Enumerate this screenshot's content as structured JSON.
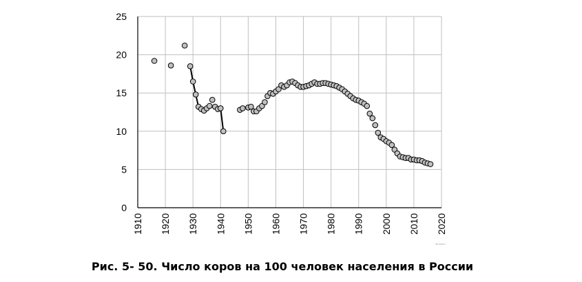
{
  "caption": "Рис. 5- 50. Число коров на 100 человек населения в России",
  "watermark": "vk.com/...",
  "chart_data": {
    "type": "scatter",
    "title": "",
    "xlabel": "",
    "ylabel": "",
    "xlim": [
      1910,
      2020
    ],
    "ylim": [
      0,
      25
    ],
    "x_ticks": [
      1910,
      1920,
      1930,
      1940,
      1950,
      1960,
      1970,
      1980,
      1990,
      2000,
      2010,
      2020
    ],
    "y_ticks": [
      0,
      5,
      10,
      15,
      20,
      25
    ],
    "grid": true,
    "legend": "none",
    "colors": {
      "marker_fill": "#c0c0c0",
      "marker_stroke": "#000000",
      "line": "#000000",
      "grid": "#bfbfbf",
      "axis": "#000000"
    },
    "series": [
      {
        "x": [
          1916,
          1922,
          1927,
          1929,
          1930,
          1931,
          1932,
          1933,
          1934,
          1935,
          1936,
          1937,
          1938,
          1939,
          1940,
          1941,
          1947,
          1948,
          1950,
          1951,
          1952,
          1953,
          1954,
          1955,
          1956,
          1957,
          1958,
          1959,
          1960,
          1961,
          1962,
          1963,
          1964,
          1965,
          1966,
          1967,
          1968,
          1969,
          1970,
          1971,
          1972,
          1973,
          1974,
          1975,
          1976,
          1977,
          1978,
          1979,
          1980,
          1981,
          1982,
          1983,
          1984,
          1985,
          1986,
          1987,
          1988,
          1989,
          1990,
          1991,
          1992,
          1993,
          1994,
          1995,
          1996,
          1997,
          1998,
          1999,
          2000,
          2001,
          2002,
          2003,
          2004,
          2005,
          2006,
          2007,
          2008,
          2009,
          2010,
          2011,
          2012,
          2013,
          2014,
          2015,
          2016
        ],
        "y": [
          19.2,
          18.6,
          21.2,
          18.5,
          16.5,
          14.8,
          13.2,
          12.9,
          12.7,
          13.0,
          13.3,
          14.1,
          13.2,
          12.9,
          13.0,
          10.0,
          12.8,
          13.0,
          13.1,
          13.2,
          12.6,
          12.6,
          13.0,
          13.3,
          13.8,
          14.6,
          15.0,
          14.9,
          15.2,
          15.5,
          16.0,
          15.8,
          16.0,
          16.4,
          16.5,
          16.3,
          16.0,
          15.8,
          15.8,
          15.9,
          16.0,
          16.2,
          16.4,
          16.2,
          16.2,
          16.3,
          16.3,
          16.2,
          16.1,
          16.0,
          15.9,
          15.7,
          15.5,
          15.2,
          14.9,
          14.6,
          14.3,
          14.1,
          14.0,
          13.8,
          13.6,
          13.3,
          12.3,
          11.7,
          10.8,
          9.8,
          9.2,
          9.0,
          8.7,
          8.5,
          8.2,
          7.6,
          7.1,
          6.7,
          6.6,
          6.5,
          6.5,
          6.3,
          6.3,
          6.2,
          6.2,
          6.1,
          5.9,
          5.8,
          5.7
        ],
        "connected_segments": [
          [
            1929,
            1934
          ],
          [
            1940,
            1941
          ]
        ]
      }
    ]
  }
}
